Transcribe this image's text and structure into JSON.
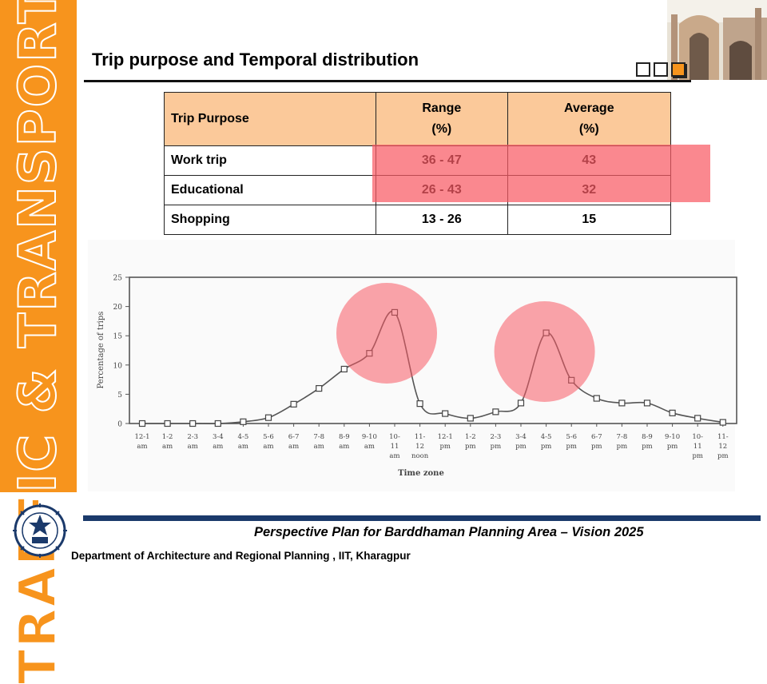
{
  "sidebar": {
    "text": "TRAFFIC & TRANSPORT"
  },
  "title": "Trip  purpose and Temporal distribution",
  "table": {
    "headers": [
      {
        "line1": "Trip Purpose",
        "line2": ""
      },
      {
        "line1": "Range",
        "line2": "(%)"
      },
      {
        "line1": "Average",
        "line2": "(%)"
      }
    ],
    "rows": [
      {
        "purpose": "Work trip",
        "range": "36 - 47",
        "average": "43"
      },
      {
        "purpose": "Educational",
        "range": "26 - 43",
        "average": "32"
      },
      {
        "purpose": "Shopping",
        "range": "13 - 26",
        "average": "15"
      }
    ]
  },
  "chart_data": {
    "type": "line",
    "ylabel": "Percentage of trips",
    "xlabel": "Time zone",
    "ylim": [
      0,
      25
    ],
    "yticks": [
      0,
      5,
      10,
      15,
      20,
      25
    ],
    "categories": [
      [
        "12-1",
        "am"
      ],
      [
        "1-2",
        "am"
      ],
      [
        "2-3",
        "am"
      ],
      [
        "3-4",
        "am"
      ],
      [
        "4-5",
        "am"
      ],
      [
        "5-6",
        "am"
      ],
      [
        "6-7",
        "am"
      ],
      [
        "7-8",
        "am"
      ],
      [
        "8-9",
        "am"
      ],
      [
        "9-10",
        "am"
      ],
      [
        "10-",
        "11",
        "am"
      ],
      [
        "11-",
        "12",
        "noon"
      ],
      [
        "12-1",
        "pm"
      ],
      [
        "1-2",
        "pm"
      ],
      [
        "2-3",
        "pm"
      ],
      [
        "3-4",
        "pm"
      ],
      [
        "4-5",
        "pm"
      ],
      [
        "5-6",
        "pm"
      ],
      [
        "6-7",
        "pm"
      ],
      [
        "7-8",
        "pm"
      ],
      [
        "8-9",
        "pm"
      ],
      [
        "9-10",
        "pm"
      ],
      [
        "10-",
        "11",
        "pm"
      ],
      [
        "11-",
        "12",
        "pm"
      ]
    ],
    "values": [
      0,
      0,
      0,
      0,
      0.3,
      1.0,
      3.3,
      6.0,
      9.3,
      12.0,
      19.0,
      3.4,
      1.7,
      0.9,
      2.0,
      3.5,
      15.5,
      7.4,
      4.3,
      3.5,
      3.5,
      1.8,
      0.9,
      0.2
    ],
    "grid": false,
    "legend": "none"
  },
  "footer": {
    "title": "Perspective Plan for Barddhaman Planning Area – Vision 2025",
    "department": "Department of Architecture and Regional Planning , IIT, Kharagpur"
  },
  "colors": {
    "accent": "#f7941d",
    "highlight": "#f85a64",
    "header_fill": "#fbc99a",
    "footer_rule": "#1b3a6b"
  }
}
